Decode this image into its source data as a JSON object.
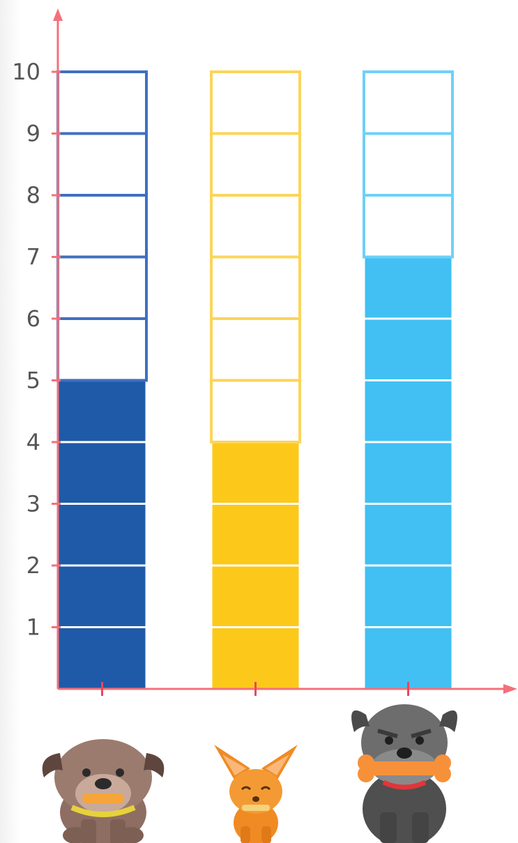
{
  "chart_data": {
    "type": "bar",
    "title": "",
    "xlabel": "",
    "ylabel": "",
    "categories": [
      "brown bulldog",
      "orange chihuahua",
      "grey schnauzer"
    ],
    "values": [
      5,
      4,
      7
    ],
    "ylim": [
      0,
      10
    ],
    "yticks": [
      "1",
      "2",
      "3",
      "4",
      "5",
      "6",
      "7",
      "8",
      "9",
      "10"
    ],
    "grid": false,
    "legend": "none",
    "bar_colors": [
      "#1f5aa8",
      "#fcc91a",
      "#42c0f3"
    ],
    "bar_outline_colors": [
      "#3f6fc0",
      "#fbd55a",
      "#6fd0f7"
    ],
    "axis_color": "#f4707a",
    "category_icons": [
      "bulldog-icon",
      "chihuahua-icon",
      "schnauzer-icon"
    ]
  }
}
